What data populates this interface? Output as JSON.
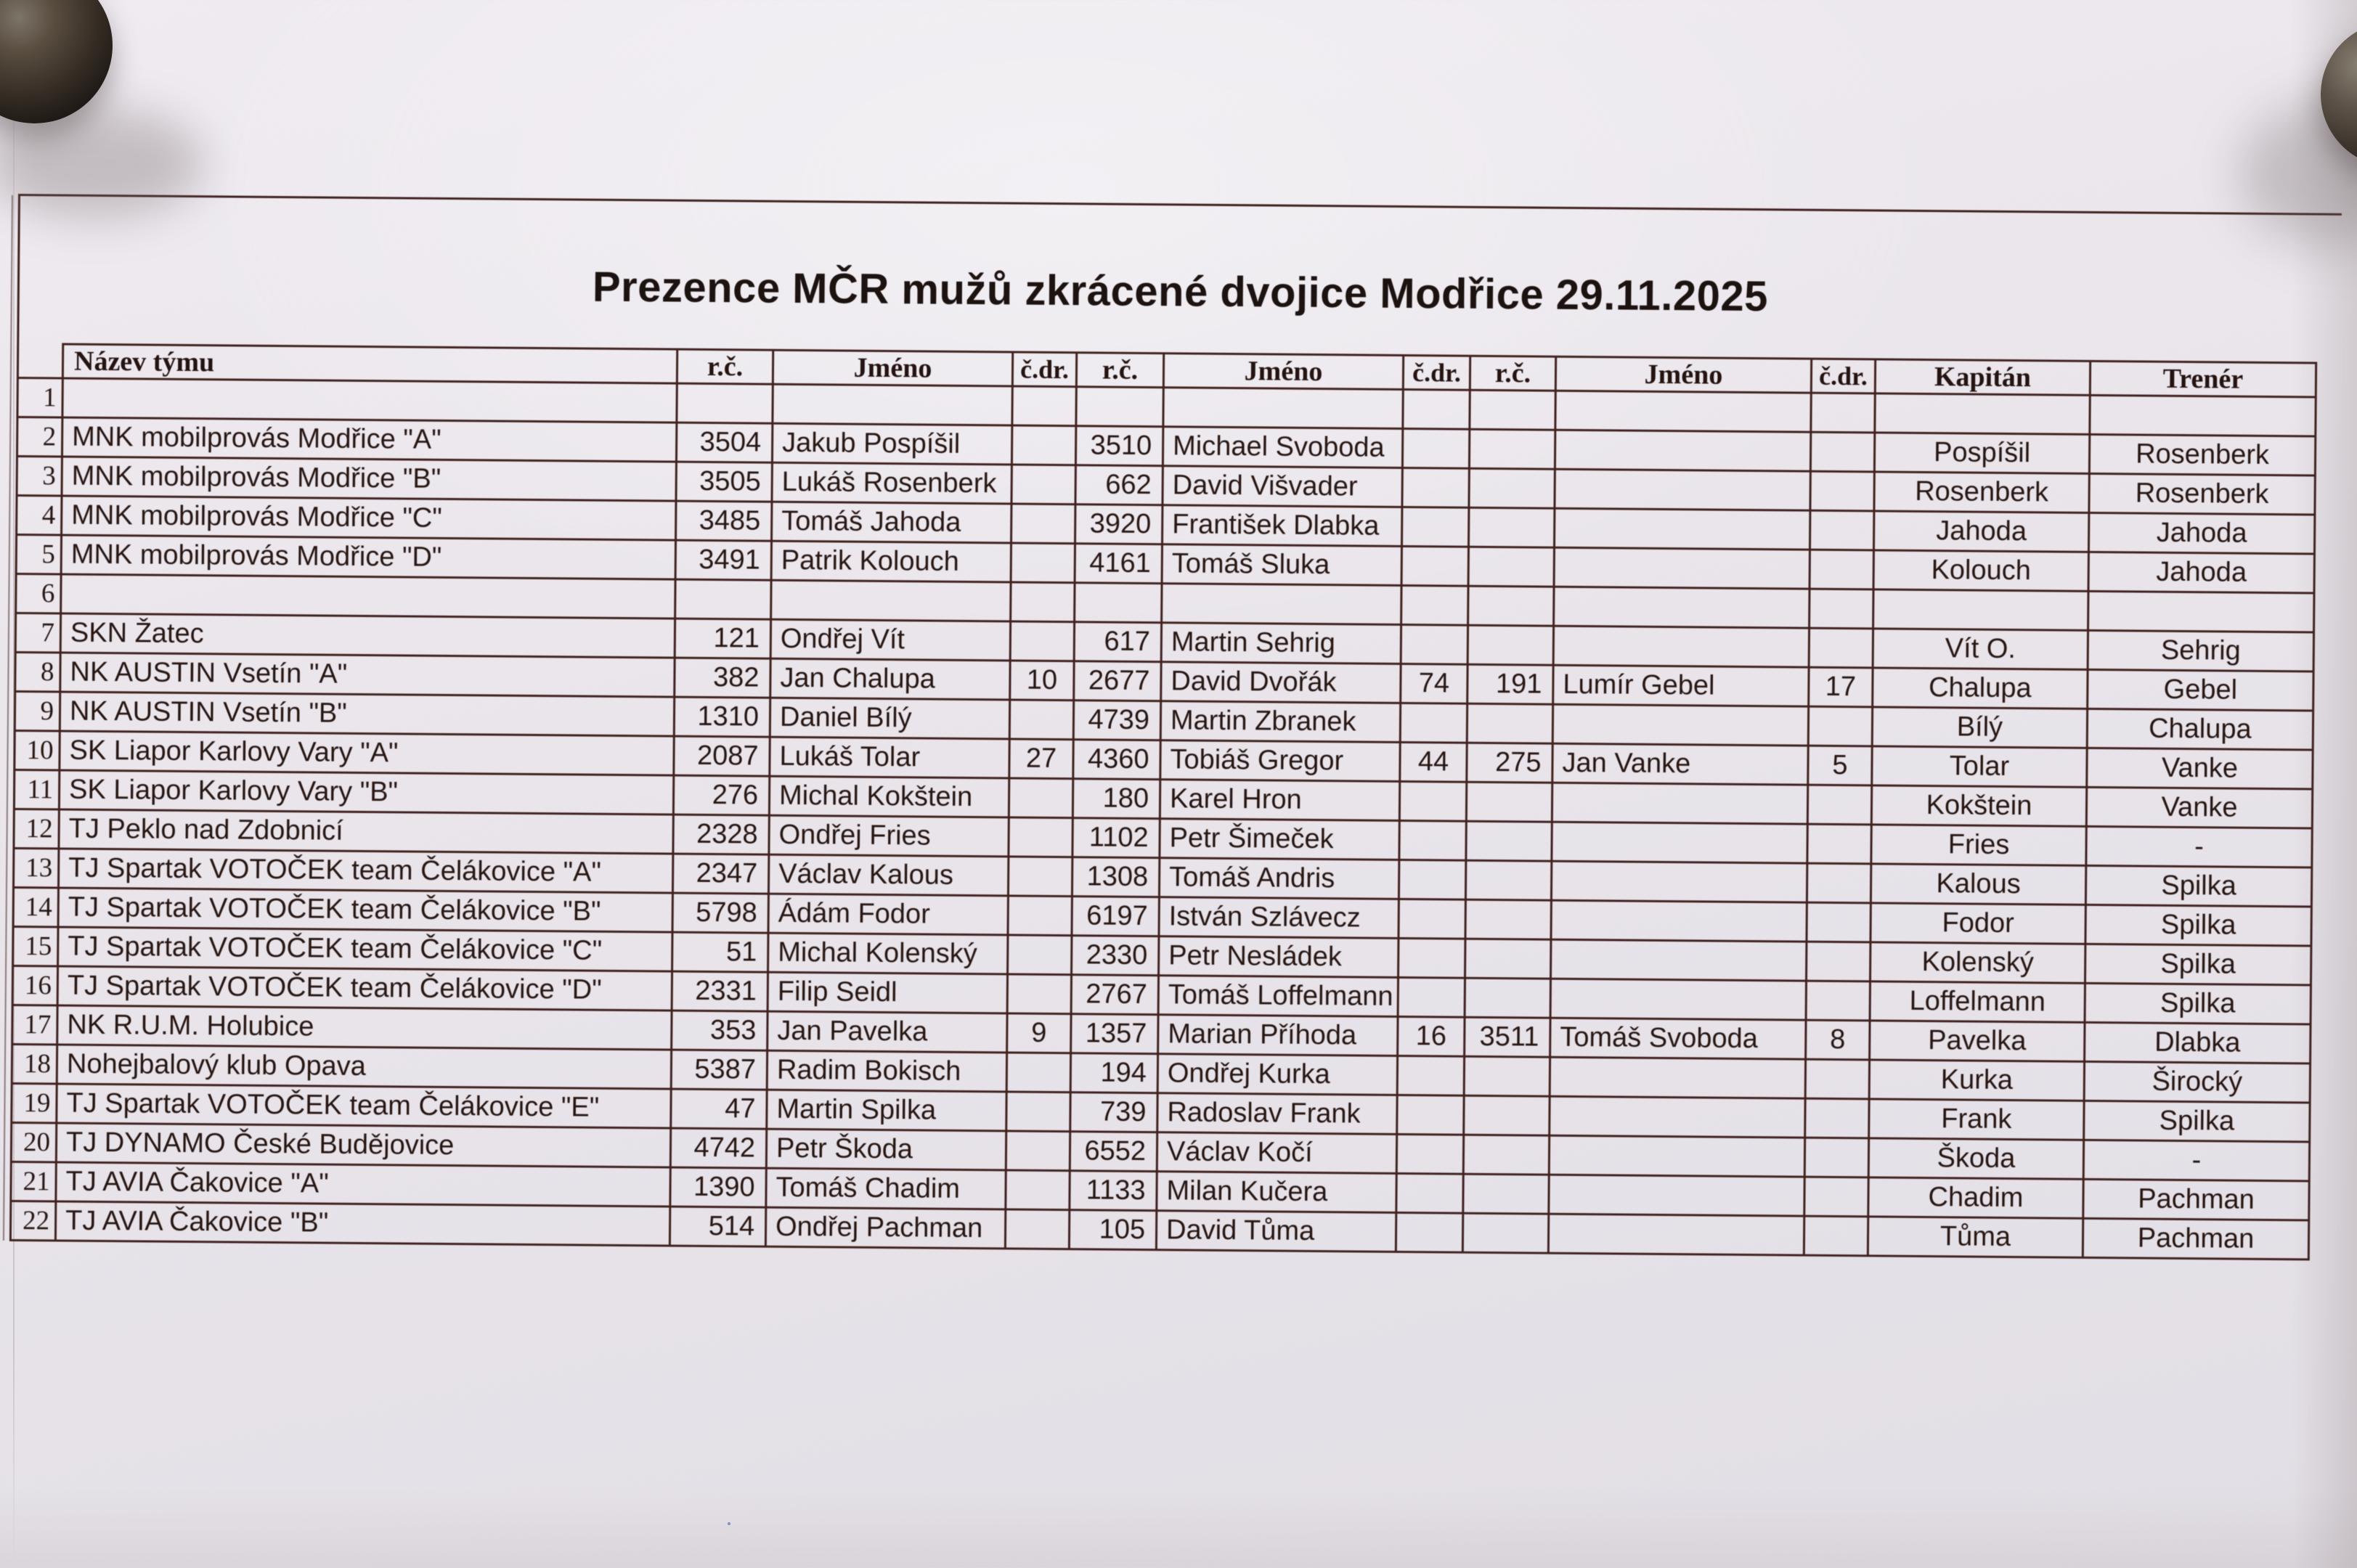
{
  "document": {
    "title": "Prezence MČR mužů zkrácené dvojice Modřice 29.11.2025"
  },
  "table": {
    "columns": [
      "",
      "Název týmu",
      "r.č.",
      "Jméno",
      "č.dr.",
      "r.č.",
      "Jméno",
      "č.dr.",
      "r.č.",
      "Jméno",
      "č.dr.",
      "Kapitán",
      "Trenér"
    ],
    "rows": [
      [
        "1",
        "",
        "",
        "",
        "",
        "",
        "",
        "",
        "",
        "",
        "",
        "",
        ""
      ],
      [
        "2",
        "MNK mobilprovás Modřice \"A\"",
        "3504",
        "Jakub Pospíšil",
        "",
        "3510",
        "Michael Svoboda",
        "",
        "",
        "",
        "",
        "Pospíšil",
        "Rosenberk"
      ],
      [
        "3",
        "MNK mobilprovás Modřice \"B\"",
        "3505",
        "Lukáš Rosenberk",
        "",
        "662",
        "David Višvader",
        "",
        "",
        "",
        "",
        "Rosenberk",
        "Rosenberk"
      ],
      [
        "4",
        "MNK mobilprovás Modřice \"C\"",
        "3485",
        "Tomáš Jahoda",
        "",
        "3920",
        "František Dlabka",
        "",
        "",
        "",
        "",
        "Jahoda",
        "Jahoda"
      ],
      [
        "5",
        "MNK mobilprovás Modřice \"D\"",
        "3491",
        "Patrik Kolouch",
        "",
        "4161",
        "Tomáš Sluka",
        "",
        "",
        "",
        "",
        "Kolouch",
        "Jahoda"
      ],
      [
        "6",
        "",
        "",
        "",
        "",
        "",
        "",
        "",
        "",
        "",
        "",
        "",
        ""
      ],
      [
        "7",
        "SKN Žatec",
        "121",
        "Ondřej Vít",
        "",
        "617",
        "Martin Sehrig",
        "",
        "",
        "",
        "",
        "Vít O.",
        "Sehrig"
      ],
      [
        "8",
        "NK AUSTIN Vsetín \"A\"",
        "382",
        "Jan Chalupa",
        "10",
        "2677",
        "David Dvořák",
        "74",
        "191",
        "Lumír Gebel",
        "17",
        "Chalupa",
        "Gebel"
      ],
      [
        "9",
        "NK AUSTIN Vsetín \"B\"",
        "1310",
        "Daniel Bílý",
        "",
        "4739",
        "Martin Zbranek",
        "",
        "",
        "",
        "",
        "Bílý",
        "Chalupa"
      ],
      [
        "10",
        "SK Liapor Karlovy Vary \"A\"",
        "2087",
        "Lukáš Tolar",
        "27",
        "4360",
        "Tobiáš Gregor",
        "44",
        "275",
        "Jan Vanke",
        "5",
        "Tolar",
        "Vanke"
      ],
      [
        "11",
        "SK Liapor Karlovy Vary \"B\"",
        "276",
        "Michal Kokštein",
        "",
        "180",
        "Karel Hron",
        "",
        "",
        "",
        "",
        "Kokštein",
        "Vanke"
      ],
      [
        "12",
        "TJ Peklo nad Zdobnicí",
        "2328",
        "Ondřej Fries",
        "",
        "1102",
        "Petr Šimeček",
        "",
        "",
        "",
        "",
        "Fries",
        "-"
      ],
      [
        "13",
        "TJ Spartak VOTOČEK team Čelákovice \"A\"",
        "2347",
        "Václav Kalous",
        "",
        "1308",
        "Tomáš Andris",
        "",
        "",
        "",
        "",
        "Kalous",
        "Spilka"
      ],
      [
        "14",
        "TJ Spartak VOTOČEK team Čelákovice \"B\"",
        "5798",
        "Ádám Fodor",
        "",
        "6197",
        "István Szlávecz",
        "",
        "",
        "",
        "",
        "Fodor",
        "Spilka"
      ],
      [
        "15",
        "TJ Spartak VOTOČEK team Čelákovice \"C\"",
        "51",
        "Michal Kolenský",
        "",
        "2330",
        "Petr Nesládek",
        "",
        "",
        "",
        "",
        "Kolenský",
        "Spilka"
      ],
      [
        "16",
        "TJ Spartak VOTOČEK team Čelákovice \"D\"",
        "2331",
        "Filip Seidl",
        "",
        "2767",
        "Tomáš Loffelmann",
        "",
        "",
        "",
        "",
        "Loffelmann",
        "Spilka"
      ],
      [
        "17",
        "NK R.U.M. Holubice",
        "353",
        "Jan Pavelka",
        "9",
        "1357",
        "Marian Příhoda",
        "16",
        "3511",
        "Tomáš Svoboda",
        "8",
        "Pavelka",
        "Dlabka"
      ],
      [
        "18",
        "Nohejbalový klub Opava",
        "5387",
        "Radim Bokisch",
        "",
        "194",
        "Ondřej Kurka",
        "",
        "",
        "",
        "",
        "Kurka",
        "Širocký"
      ],
      [
        "19",
        "TJ Spartak VOTOČEK team Čelákovice \"E\"",
        "47",
        "Martin Spilka",
        "",
        "739",
        "Radoslav Frank",
        "",
        "",
        "",
        "",
        "Frank",
        "Spilka"
      ],
      [
        "20",
        "TJ DYNAMO České Budějovice",
        "4742",
        "Petr Škoda",
        "",
        "6552",
        "Václav Kočí",
        "",
        "",
        "",
        "",
        "Škoda",
        "-"
      ],
      [
        "21",
        "TJ AVIA Čakovice \"A\"",
        "1390",
        "Tomáš Chadim",
        "",
        "1133",
        "Milan Kučera",
        "",
        "",
        "",
        "",
        "Chadim",
        "Pachman"
      ],
      [
        "22",
        "TJ AVIA Čakovice \"B\"",
        "514",
        "Ondřej Pachman",
        "",
        "105",
        "David Tůma",
        "",
        "",
        "",
        "",
        "Tůma",
        "Pachman"
      ]
    ]
  },
  "colors": {
    "paper": "#e9e5eb",
    "grid_line": "#40221f",
    "text": "#271612",
    "title_text": "#1c1210",
    "magnet": "#2b241f"
  }
}
